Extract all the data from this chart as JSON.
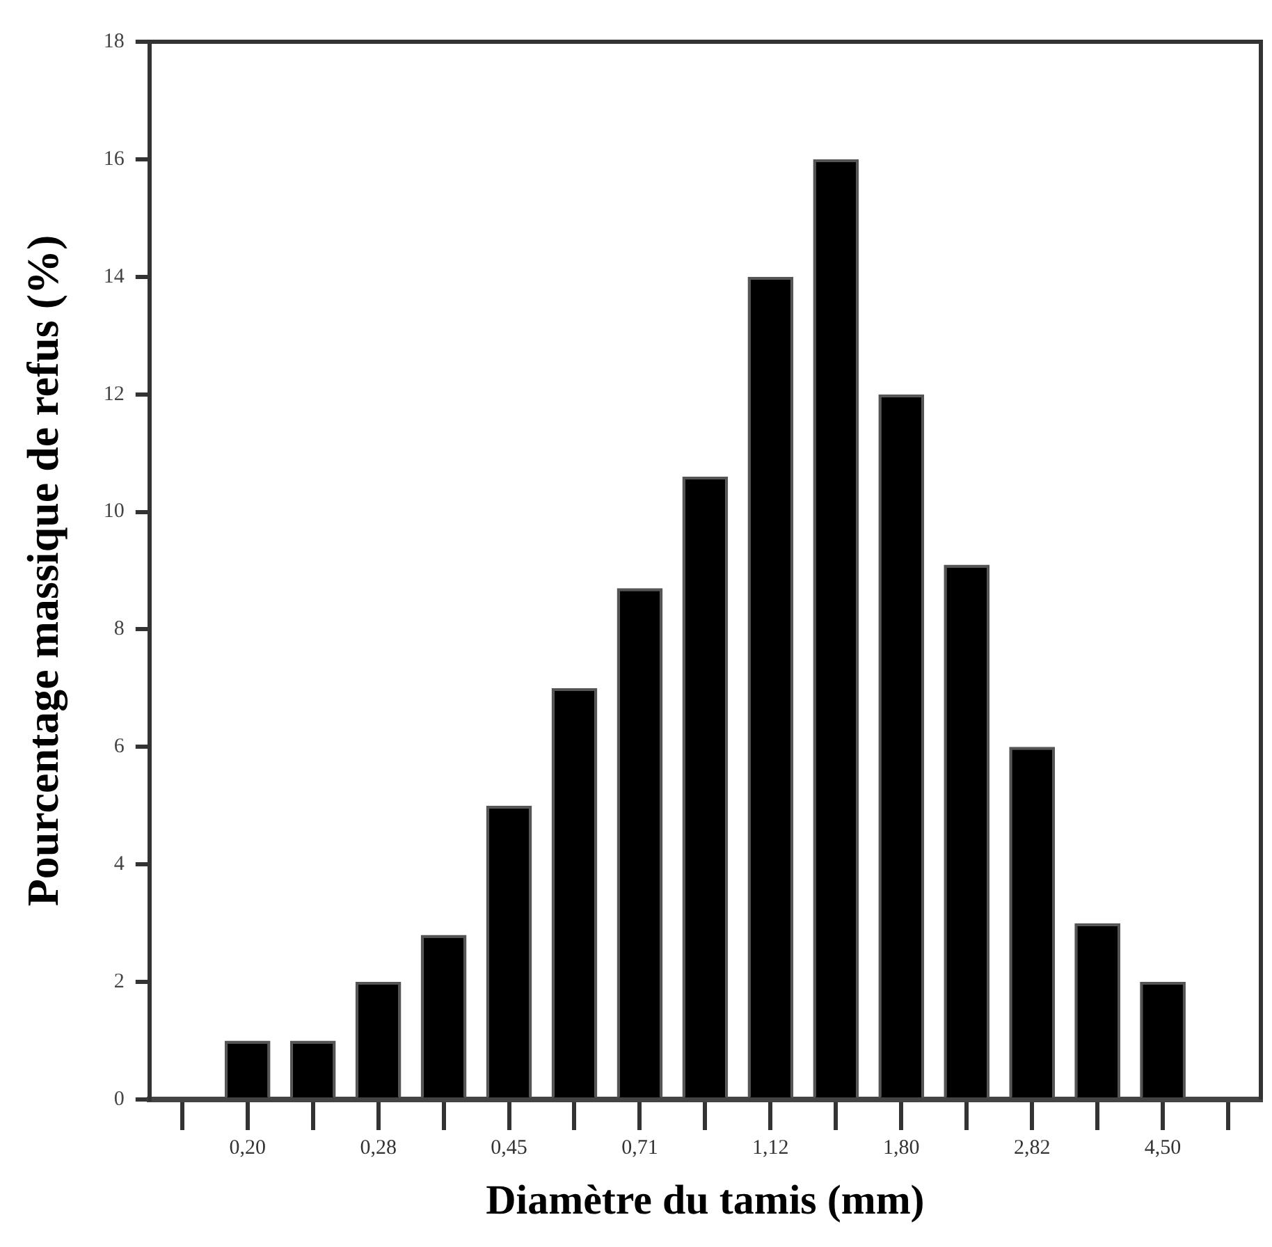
{
  "chart_data": {
    "type": "bar",
    "xlabel": "Diamètre du tamis (mm)",
    "ylabel": "Pourcentage massique de refus (%)",
    "categories": [
      null,
      "0,20",
      null,
      "0,28",
      null,
      "0,45",
      null,
      "0,71",
      null,
      "1,12",
      null,
      "1,80",
      null,
      "2,82",
      null,
      "4,50",
      null
    ],
    "values": [
      null,
      1,
      1,
      2,
      2.8,
      5,
      7,
      8.7,
      10.6,
      14,
      16,
      12,
      9.1,
      6,
      3,
      2,
      null
    ],
    "color": "#000000",
    "ylim": [
      0,
      18
    ],
    "yticks": [
      0,
      2,
      4,
      6,
      8,
      10,
      12,
      14,
      16,
      18
    ],
    "grid": false,
    "legend": false
  }
}
